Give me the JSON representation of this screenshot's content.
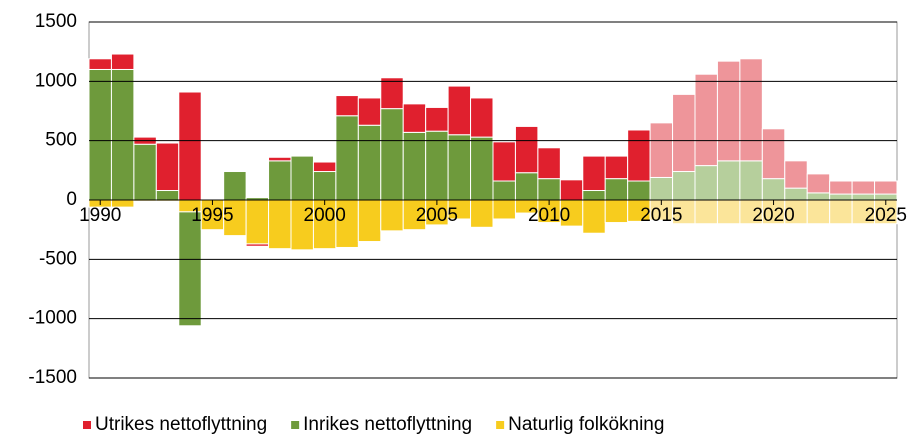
{
  "chart_data": {
    "type": "bar",
    "stacked": true,
    "x": [
      1990,
      1991,
      1992,
      1993,
      1994,
      1995,
      1996,
      1997,
      1998,
      1999,
      2000,
      2001,
      2002,
      2003,
      2004,
      2005,
      2006,
      2007,
      2008,
      2009,
      2010,
      2011,
      2012,
      2013,
      2014,
      2015,
      2016,
      2017,
      2018,
      2019,
      2020,
      2021,
      2022,
      2023,
      2024,
      2025
    ],
    "xlim": [
      1989.5,
      2025.5
    ],
    "xticks": [
      1990,
      1995,
      2000,
      2005,
      2010,
      2015,
      2020,
      2025
    ],
    "ylim": [
      -1500,
      1500
    ],
    "yticks": [
      -1500,
      -1000,
      -500,
      0,
      500,
      1000,
      1500
    ],
    "grid": true,
    "forecast_from": 2015,
    "legend": "bottom",
    "series": [
      {
        "name": "Utrikes nettoflyttning",
        "color": "#e0202e",
        "forecast_color": "#ee959a",
        "values": [
          90,
          130,
          60,
          400,
          910,
          0,
          0,
          -20,
          30,
          0,
          80,
          170,
          230,
          260,
          240,
          200,
          410,
          330,
          330,
          390,
          260,
          170,
          290,
          190,
          430,
          460,
          650,
          770,
          840,
          860,
          420,
          230,
          160,
          110,
          110,
          110
        ]
      },
      {
        "name": "Inrikes nettoflyttning",
        "color": "#6e9a3c",
        "forecast_color": "#b6cf9c",
        "values": [
          1100,
          1100,
          470,
          80,
          -960,
          0,
          240,
          20,
          330,
          370,
          240,
          710,
          630,
          770,
          570,
          580,
          550,
          530,
          160,
          230,
          180,
          0,
          80,
          180,
          160,
          190,
          240,
          290,
          330,
          330,
          180,
          100,
          60,
          50,
          50,
          50
        ]
      },
      {
        "name": "Naturlig folkökning",
        "color": "#f7cc1e",
        "forecast_color": "#fbe59a",
        "values": [
          -60,
          -60,
          -10,
          -10,
          -100,
          -250,
          -300,
          -370,
          -410,
          -420,
          -410,
          -400,
          -350,
          -260,
          -250,
          -210,
          -160,
          -230,
          -160,
          -110,
          -190,
          -220,
          -280,
          -190,
          -180,
          -170,
          -200,
          -200,
          -200,
          -200,
          -200,
          -200,
          -200,
          -200,
          -200,
          -200
        ]
      }
    ]
  }
}
